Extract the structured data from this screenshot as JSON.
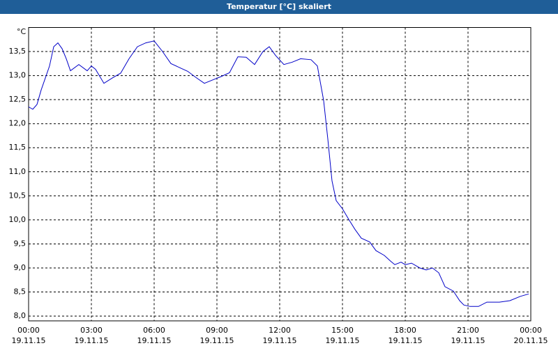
{
  "chart_data": {
    "type": "line",
    "title": "Temperatur [°C] skaliert",
    "y_unit": "°C",
    "x": [
      0,
      0.2,
      0.4,
      0.6,
      0.8,
      1.0,
      1.2,
      1.4,
      1.6,
      1.8,
      2.0,
      2.4,
      2.8,
      3.0,
      3.2,
      3.6,
      4.0,
      4.4,
      4.8,
      5.2,
      5.6,
      6.0,
      6.4,
      6.8,
      7.2,
      7.6,
      8.0,
      8.4,
      8.8,
      9.2,
      9.6,
      10.0,
      10.4,
      10.8,
      11.2,
      11.5,
      11.8,
      12.2,
      12.6,
      13.0,
      13.5,
      13.8,
      14.1,
      14.3,
      14.5,
      14.7,
      15.0,
      15.3,
      15.6,
      15.9,
      16.3,
      16.6,
      17.0,
      17.3,
      17.5,
      17.8,
      18.0,
      18.3,
      18.7,
      19.0,
      19.3,
      19.6,
      19.9,
      20.3,
      20.6,
      20.8,
      21.1,
      21.5,
      21.9,
      22.5,
      23.0,
      23.5,
      23.9
    ],
    "values": [
      12.35,
      12.3,
      12.4,
      12.7,
      12.95,
      13.2,
      13.6,
      13.68,
      13.56,
      13.35,
      13.1,
      13.23,
      13.1,
      13.2,
      13.13,
      12.84,
      12.95,
      13.05,
      13.35,
      13.6,
      13.68,
      13.72,
      13.5,
      13.25,
      13.17,
      13.09,
      12.96,
      12.84,
      12.91,
      12.98,
      13.06,
      13.39,
      13.38,
      13.23,
      13.5,
      13.6,
      13.42,
      13.23,
      13.28,
      13.35,
      13.33,
      13.2,
      12.48,
      11.68,
      10.81,
      10.4,
      10.23,
      10.01,
      9.8,
      9.62,
      9.54,
      9.36,
      9.26,
      9.14,
      9.07,
      9.12,
      9.07,
      9.1,
      9.0,
      8.96,
      9.0,
      8.9,
      8.61,
      8.52,
      8.32,
      8.23,
      8.2,
      8.2,
      8.29,
      8.29,
      8.32,
      8.41,
      8.46
    ],
    "color": "#0000c8",
    "xlim": [
      0,
      24
    ],
    "xticks": [
      {
        "value": 0,
        "label": "00:00",
        "date": "19.11.15"
      },
      {
        "value": 3,
        "label": "03:00",
        "date": "19.11.15"
      },
      {
        "value": 6,
        "label": "06:00",
        "date": "19.11.15"
      },
      {
        "value": 9,
        "label": "09:00",
        "date": "19.11.15"
      },
      {
        "value": 12,
        "label": "12:00",
        "date": "19.11.15"
      },
      {
        "value": 15,
        "label": "15:00",
        "date": "19.11.15"
      },
      {
        "value": 18,
        "label": "18:00",
        "date": "19.11.15"
      },
      {
        "value": 21,
        "label": "21:00",
        "date": "19.11.15"
      },
      {
        "value": 24,
        "label": "00:00",
        "date": "20.11.15"
      }
    ],
    "ylim": [
      7.9,
      14.0
    ],
    "yticks": [
      {
        "value": 8,
        "label": "8,0"
      },
      {
        "value": 8.5,
        "label": "8,5"
      },
      {
        "value": 9,
        "label": "9,0"
      },
      {
        "value": 9.5,
        "label": "9,5"
      },
      {
        "value": 10,
        "label": "10,0"
      },
      {
        "value": 10.5,
        "label": "10,5"
      },
      {
        "value": 11,
        "label": "11,0"
      },
      {
        "value": 11.5,
        "label": "11,5"
      },
      {
        "value": 12,
        "label": "12,0"
      },
      {
        "value": 12.5,
        "label": "12,5"
      },
      {
        "value": 13,
        "label": "13,0"
      },
      {
        "value": 13.5,
        "label": "13,5"
      }
    ],
    "grid": true
  }
}
